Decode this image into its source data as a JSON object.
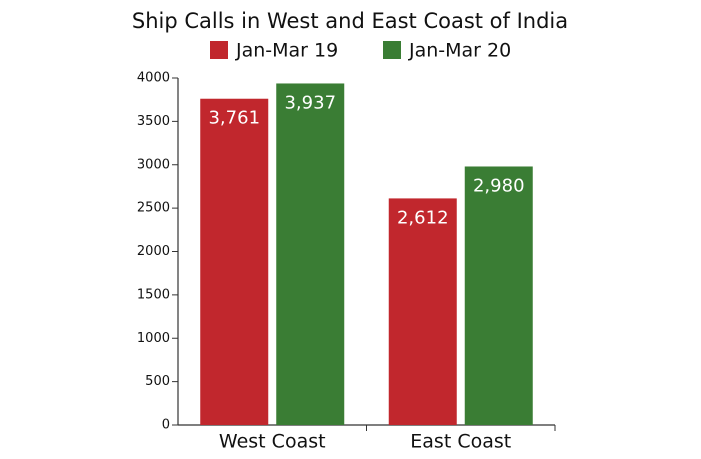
{
  "chart_data": {
    "type": "bar",
    "title": "Ship Calls in West and East Coast of India",
    "categories": [
      "West Coast",
      "East Coast"
    ],
    "series": [
      {
        "name": "Jan-Mar 19",
        "color": "#c1272d",
        "values": [
          3761,
          2612
        ],
        "value_labels": [
          "3,761",
          "2,612"
        ]
      },
      {
        "name": "Jan-Mar 20",
        "color": "#3a7d34",
        "values": [
          3937,
          2980
        ],
        "value_labels": [
          "3,937",
          "2,980"
        ]
      }
    ],
    "ylim": [
      0,
      4000
    ],
    "yticks": [
      0,
      500,
      1000,
      1500,
      2000,
      2500,
      3000,
      3500,
      4000
    ],
    "grid": false
  }
}
